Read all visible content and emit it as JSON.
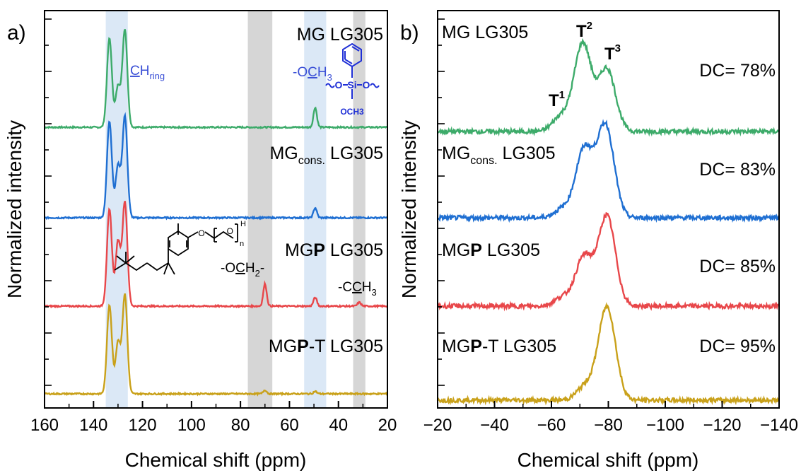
{
  "colors": {
    "green": "#3dab6a",
    "blue": "#1f6fd2",
    "red": "#e8474a",
    "gold": "#c9a11a",
    "highlight_blue": "#dbe8f6",
    "highlight_gray": "#d6d6d6",
    "annotation_blue": "#3a4fd6",
    "structure_blue": "#1f2fd6"
  },
  "chart_data": [
    {
      "type": "line",
      "panel_label": "a)",
      "xlabel": "Chemical shift (ppm)",
      "ylabel": "Normalized intensity",
      "xlim": [
        160,
        20
      ],
      "x_ticks": [
        160,
        140,
        120,
        100,
        80,
        60,
        40,
        20
      ],
      "grid": false,
      "legend": "none",
      "series": [
        {
          "name": "MG LG305",
          "name_parts": {
            "pre": "MG",
            "bold": "",
            "sub": "",
            "post": " LG305"
          },
          "color": "#3dab6a",
          "peaks": [
            [
              133.5,
              0.72
            ],
            [
              130.0,
              0.33
            ],
            [
              127.2,
              0.79
            ],
            [
              49.5,
              0.16
            ]
          ]
        },
        {
          "name": "MGcons. LG305",
          "name_parts": {
            "pre": "MG",
            "bold": "",
            "sub": "cons.",
            "post": " LG305"
          },
          "color": "#1f6fd2",
          "peaks": [
            [
              133.5,
              0.78
            ],
            [
              130.0,
              0.42
            ],
            [
              127.2,
              0.82
            ],
            [
              49.5,
              0.08
            ]
          ]
        },
        {
          "name": "MGP LG305",
          "name_parts": {
            "pre": "MG",
            "bold": "P",
            "sub": "",
            "post": " LG305"
          },
          "color": "#e8474a",
          "peaks": [
            [
              133.5,
              0.78
            ],
            [
              130.0,
              0.52
            ],
            [
              127.2,
              0.84
            ],
            [
              70.0,
              0.18
            ],
            [
              49.5,
              0.07
            ],
            [
              31.5,
              0.03
            ]
          ]
        },
        {
          "name": "MGP-T LG305",
          "name_parts": {
            "pre": "MG",
            "bold": "P",
            "sub": "",
            "post": "-T LG305"
          },
          "color": "#c9a11a",
          "peaks": [
            [
              133.5,
              0.72
            ],
            [
              130.0,
              0.42
            ],
            [
              127.2,
              0.8
            ],
            [
              70.0,
              0.03
            ],
            [
              49.5,
              0.02
            ]
          ]
        }
      ],
      "shaded_regions": [
        {
          "range": [
            135,
            126
          ],
          "color": "#dbe8f6",
          "type": "blue"
        },
        {
          "range": [
            77,
            67
          ],
          "color": "#d6d6d6",
          "type": "gray"
        },
        {
          "range": [
            54,
            45
          ],
          "color": "#dbe8f6",
          "type": "blue"
        },
        {
          "range": [
            34,
            29
          ],
          "color": "#d6d6d6",
          "type": "gray"
        }
      ],
      "annotations": {
        "ch_ring": {
          "main": "CH",
          "underline": "C",
          "sub": "ring"
        },
        "och3": "-OCH3",
        "och3_parts": {
          "pre": "-O",
          "underline": "C",
          "post": "H",
          "sub": "3"
        },
        "och2": "-OCH2-",
        "och2_parts": {
          "pre": "-O",
          "underline": "C",
          "post": "H",
          "sub": "2",
          "tail": "-"
        },
        "cch3": "-CCH3",
        "cch3_parts": {
          "pre": "-C",
          "underline": "C",
          "post": "H",
          "sub": "3"
        },
        "structure_si": {
          "si": "Si",
          "o": "O",
          "och3": "OCH3"
        },
        "structure_peg": {
          "o": "O",
          "h": "H",
          "n": "n"
        }
      }
    },
    {
      "type": "line",
      "panel_label": "b)",
      "xlabel": "Chemical shift (ppm)",
      "ylabel": "Normalized intensity",
      "xlim": [
        -20,
        -140
      ],
      "x_ticks": [
        -20,
        -40,
        -60,
        -80,
        -100,
        -120,
        -140
      ],
      "x_tick_labels": [
        "−20",
        "−40",
        "−60",
        "−80",
        "−100",
        "−120",
        "−140"
      ],
      "grid": false,
      "legend": "none",
      "series": [
        {
          "name": "MG LG305",
          "name_parts": {
            "pre": "MG",
            "bold": "",
            "sub": "",
            "post": " LG305"
          },
          "color": "#3dab6a",
          "dc": "DC= 78%",
          "peaks": [
            [
              -63.5,
              0.14
            ],
            [
              -71.0,
              0.8
            ],
            [
              -79.5,
              0.57
            ]
          ]
        },
        {
          "name": "MGcons. LG305",
          "name_parts": {
            "pre": "MG",
            "bold": "",
            "sub": "cons.",
            "post": " LG305"
          },
          "color": "#1f6fd2",
          "dc": "DC= 83%",
          "peaks": [
            [
              -64.0,
              0.08
            ],
            [
              -71.5,
              0.62
            ],
            [
              -79.0,
              0.84
            ]
          ]
        },
        {
          "name": "MGP LG305",
          "name_parts": {
            "pre": "MG",
            "bold": "P",
            "sub": "",
            "post": " LG305"
          },
          "color": "#e8474a",
          "dc": "DC= 85%",
          "peaks": [
            [
              -64.0,
              0.08
            ],
            [
              -71.5,
              0.45
            ],
            [
              -79.5,
              0.82
            ]
          ]
        },
        {
          "name": "MGP-T LG305",
          "name_parts": {
            "pre": "MG",
            "bold": "P",
            "sub": "",
            "post": "-T LG305"
          },
          "color": "#c9a11a",
          "dc": "DC= 95%",
          "peaks": [
            [
              -72.0,
              0.13
            ],
            [
              -79.5,
              0.85
            ]
          ]
        }
      ],
      "annotations": {
        "t1": {
          "base": "T",
          "sup": "1"
        },
        "t2": {
          "base": "T",
          "sup": "2"
        },
        "t3": {
          "base": "T",
          "sup": "3"
        }
      }
    }
  ]
}
